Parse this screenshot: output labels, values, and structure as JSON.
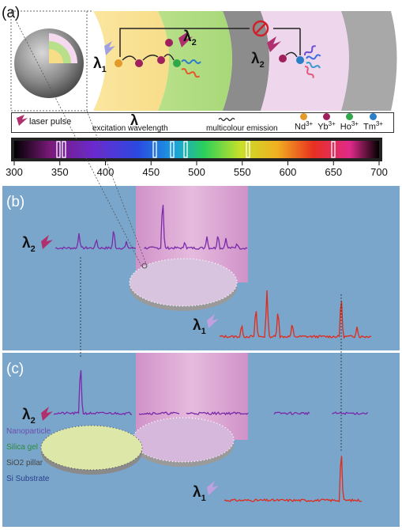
{
  "panel_a": {
    "label": "(a)",
    "lambda1": "λ",
    "lambda1_sub": "1",
    "lambda2": "λ",
    "lambda2_sub": "2",
    "lambda2b": "λ",
    "lambda2b_sub": "2"
  },
  "legend": {
    "laser_pulse": "laser pulse",
    "lambda_symbol": "λ",
    "excitation_wavelength": "excitation wavelength",
    "multicolour_emission": "multicolour emission",
    "ions": [
      {
        "label": "Nd",
        "sup": "3+",
        "color": "#e39a2a"
      },
      {
        "label": "Yb",
        "sup": "3+",
        "color": "#a0205e"
      },
      {
        "label": "Ho",
        "sup": "3+",
        "color": "#2fa84a"
      },
      {
        "label": "Tm",
        "sup": "3+",
        "color": "#2a7fc8"
      }
    ]
  },
  "spectrum_axis": {
    "ticks": [
      "300",
      "350",
      "400",
      "450",
      "500",
      "550",
      "600",
      "650",
      "700"
    ]
  },
  "panel_b": {
    "label": "(b)",
    "lambda2": "λ",
    "lambda2_sub": "2",
    "lambda1": "λ",
    "lambda1_sub": "1"
  },
  "panel_c": {
    "label": "(c)",
    "lambda2": "λ",
    "lambda2_sub": "2",
    "lambda1": "λ",
    "lambda1_sub": "1",
    "layers": [
      {
        "label": "Nanoparticle",
        "color": "#6a4fb0"
      },
      {
        "label": "Silica gel",
        "color": "#2e8a3a"
      },
      {
        "label": "SiO2 pillar",
        "color": "#444444"
      },
      {
        "label": "Si Substrate",
        "color": "#2a3f8a"
      }
    ]
  },
  "colors": {
    "panel_bg": "#7aa6cc",
    "beam": "#e8a6d0",
    "violet_trace": "#7a2aa8",
    "red_trace": "#e02a1a"
  }
}
